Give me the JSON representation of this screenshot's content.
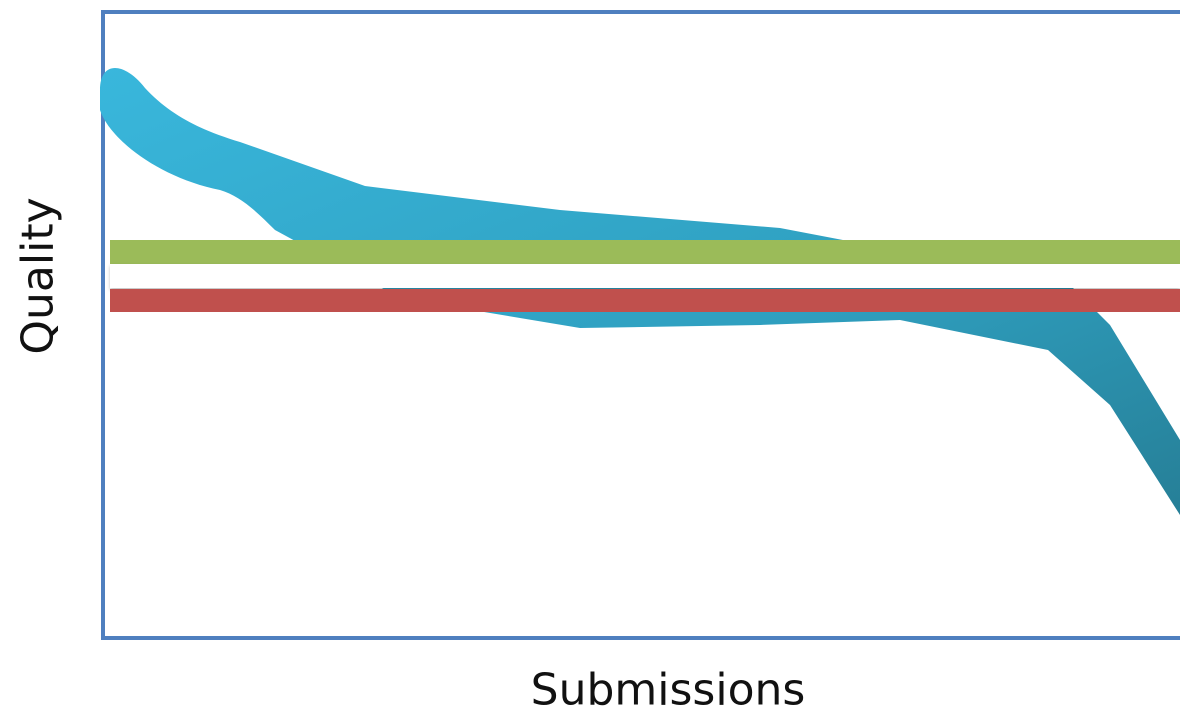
{
  "axes": {
    "y_label": "Quality",
    "x_label": "Submissions"
  },
  "colors": {
    "frame": "#4f7fbf",
    "band_fill_light": "#37b3d6",
    "band_fill_dark": "#2a8aa6",
    "green_line": "#9bbb59",
    "red_line": "#c0504d",
    "white_line": "#ffffff"
  },
  "legend": []
}
